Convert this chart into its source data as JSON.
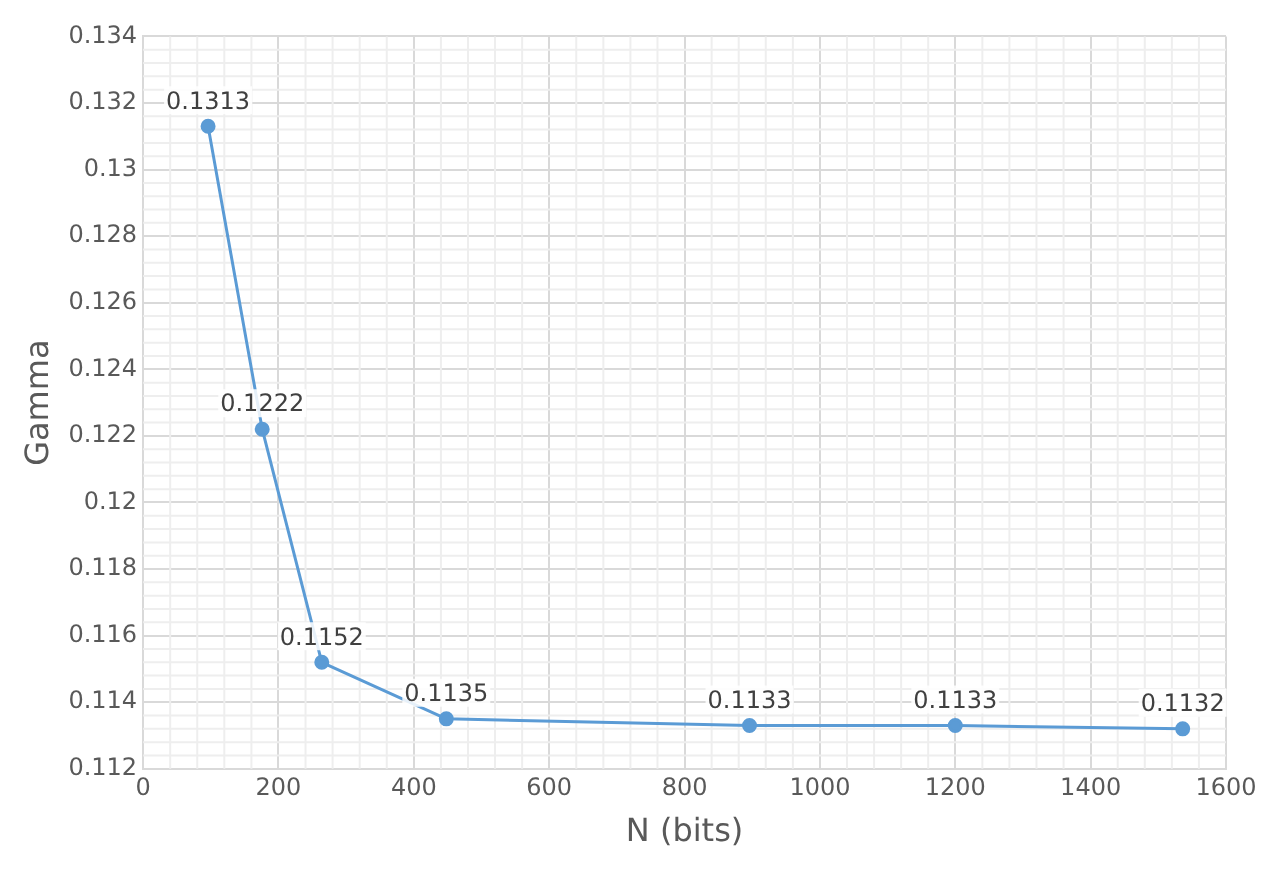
{
  "chart_data": {
    "type": "line",
    "xlabel": "N (bits)",
    "ylabel": "Gamma",
    "x": [
      96,
      176,
      264,
      448,
      896,
      1200,
      1536
    ],
    "series": [
      {
        "color": "#5b9bd5",
        "values": [
          0.1313,
          0.1222,
          0.1152,
          0.1135,
          0.1133,
          0.1133,
          0.1132
        ]
      }
    ],
    "xlim": [
      0,
      1600
    ],
    "xticks": [
      0,
      200,
      400,
      600,
      800,
      1000,
      1200,
      1400,
      1600
    ],
    "ylim": [
      0.112,
      0.134
    ],
    "yticks": [
      0.112,
      0.114,
      0.116,
      0.118,
      0.12,
      0.122,
      0.124,
      0.126,
      0.128,
      0.13,
      0.132,
      0.134
    ],
    "grid": true,
    "legend": false,
    "marker": "circle",
    "line_style": "solid",
    "data_labels": true
  }
}
